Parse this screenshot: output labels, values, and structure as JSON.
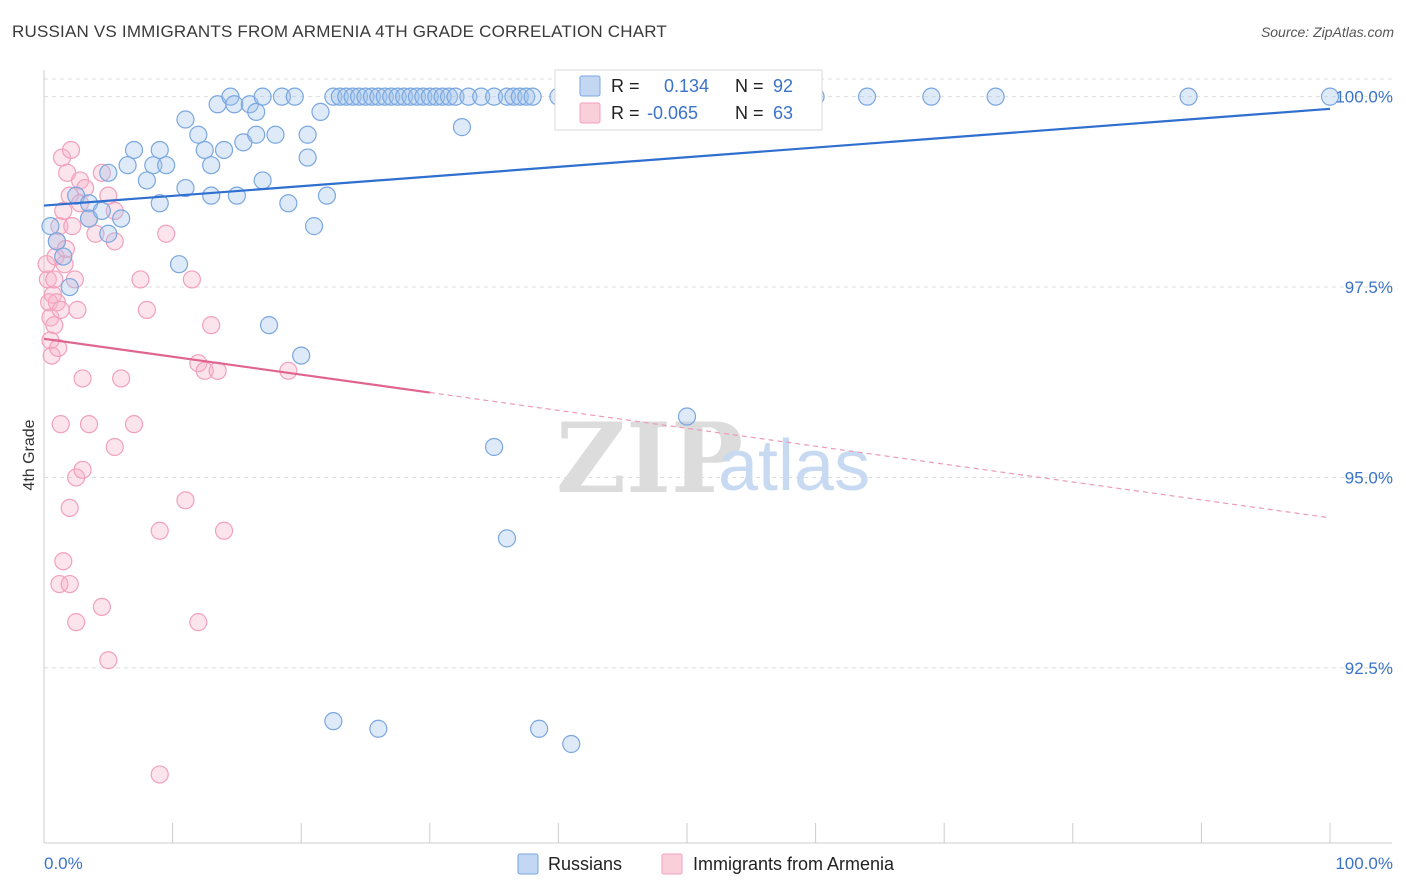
{
  "header": {
    "title": "RUSSIAN VS IMMIGRANTS FROM ARMENIA 4TH GRADE CORRELATION CHART",
    "source": "Source: ZipAtlas.com"
  },
  "watermark": {
    "zip": "ZIP",
    "atlas": "atlas"
  },
  "legend": {
    "r_label": "R =",
    "n_label": "N =",
    "rows": [
      {
        "r": "0.134",
        "n": "92",
        "color": "#7aa7e0"
      },
      {
        "r": "-0.065",
        "n": "63",
        "color": "#f2a0bb"
      }
    ]
  },
  "chart_data": {
    "type": "scatter",
    "title": "RUSSIAN VS IMMIGRANTS FROM ARMENIA 4TH GRADE CORRELATION CHART",
    "xlabel": "",
    "ylabel": "4th Grade",
    "xlim": [
      0,
      100
    ],
    "ylim": [
      90.2,
      100.35
    ],
    "x_tick_labels": [
      "0.0%",
      "100.0%"
    ],
    "y_ticks": [
      92.5,
      95.0,
      97.5,
      100.0
    ],
    "y_tick_labels": [
      "92.5%",
      "95.0%",
      "97.5%",
      "100.0%"
    ],
    "grid": true,
    "legend_position": "top-center",
    "series": [
      {
        "name": "Russians",
        "color": "#7aa7e0",
        "trend": {
          "x": [
            0,
            100
          ],
          "y": [
            98.57,
            99.84
          ],
          "solid_until": 100
        },
        "points": [
          [
            0.5,
            98.3
          ],
          [
            1.0,
            98.1
          ],
          [
            1.5,
            97.9
          ],
          [
            2.0,
            97.5
          ],
          [
            2.5,
            98.7
          ],
          [
            3.5,
            98.6
          ],
          [
            3.5,
            98.4
          ],
          [
            4.5,
            98.5
          ],
          [
            5.0,
            98.2
          ],
          [
            5.0,
            99.0
          ],
          [
            6.0,
            98.4
          ],
          [
            6.5,
            99.1
          ],
          [
            7.0,
            99.3
          ],
          [
            8.0,
            98.9
          ],
          [
            8.5,
            99.1
          ],
          [
            9.0,
            98.6
          ],
          [
            9.0,
            99.3
          ],
          [
            9.5,
            99.1
          ],
          [
            10.5,
            97.8
          ],
          [
            11.0,
            99.7
          ],
          [
            11.0,
            98.8
          ],
          [
            12.0,
            99.5
          ],
          [
            12.5,
            99.3
          ],
          [
            13.0,
            99.1
          ],
          [
            13.0,
            98.7
          ],
          [
            13.5,
            99.9
          ],
          [
            14.0,
            99.3
          ],
          [
            14.5,
            100.0
          ],
          [
            14.8,
            99.9
          ],
          [
            15.0,
            98.7
          ],
          [
            15.5,
            99.4
          ],
          [
            16.0,
            99.9
          ],
          [
            16.5,
            99.5
          ],
          [
            16.5,
            99.8
          ],
          [
            17.0,
            98.9
          ],
          [
            17.0,
            100.0
          ],
          [
            17.5,
            97.0
          ],
          [
            18.0,
            99.5
          ],
          [
            18.5,
            100.0
          ],
          [
            19.0,
            98.6
          ],
          [
            19.5,
            100.0
          ],
          [
            20.0,
            96.6
          ],
          [
            20.5,
            99.5
          ],
          [
            20.5,
            99.2
          ],
          [
            21.0,
            98.3
          ],
          [
            21.5,
            99.8
          ],
          [
            22.0,
            98.7
          ],
          [
            22.5,
            100.0
          ],
          [
            23.0,
            100.0
          ],
          [
            23.5,
            100.0
          ],
          [
            24.0,
            100.0
          ],
          [
            24.5,
            100.0
          ],
          [
            25.0,
            100.0
          ],
          [
            25.5,
            100.0
          ],
          [
            26.0,
            100.0
          ],
          [
            26.5,
            100.0
          ],
          [
            27.0,
            100.0
          ],
          [
            27.5,
            100.0
          ],
          [
            28.0,
            100.0
          ],
          [
            28.5,
            100.0
          ],
          [
            29.0,
            100.0
          ],
          [
            29.5,
            100.0
          ],
          [
            30.0,
            100.0
          ],
          [
            30.5,
            100.0
          ],
          [
            31.0,
            100.0
          ],
          [
            31.5,
            100.0
          ],
          [
            32.0,
            100.0
          ],
          [
            32.5,
            99.6
          ],
          [
            33.0,
            100.0
          ],
          [
            34.0,
            100.0
          ],
          [
            35.0,
            100.0
          ],
          [
            36.0,
            100.0
          ],
          [
            36.5,
            100.0
          ],
          [
            37.0,
            100.0
          ],
          [
            37.5,
            100.0
          ],
          [
            38.0,
            100.0
          ],
          [
            40.0,
            100.0
          ],
          [
            41.0,
            100.0
          ],
          [
            42.0,
            100.0
          ],
          [
            48.5,
            100.0
          ],
          [
            51.0,
            100.0
          ],
          [
            53.0,
            100.0
          ],
          [
            56.5,
            100.0
          ],
          [
            60.0,
            100.0
          ],
          [
            64.0,
            100.0
          ],
          [
            69.0,
            100.0
          ],
          [
            74.0,
            100.0
          ],
          [
            89.0,
            100.0
          ],
          [
            100.0,
            100.0
          ],
          [
            36.0,
            94.2
          ],
          [
            35.0,
            95.4
          ],
          [
            50.0,
            95.8
          ],
          [
            22.5,
            91.8
          ],
          [
            26.0,
            91.7
          ],
          [
            38.5,
            91.7
          ],
          [
            41.0,
            91.5
          ]
        ]
      },
      {
        "name": "Immigrants from Armenia",
        "color": "#f2a0bb",
        "trend": {
          "x": [
            0,
            100
          ],
          "y": [
            96.82,
            94.47
          ],
          "solid_until": 30
        },
        "points": [
          [
            0.2,
            97.8
          ],
          [
            0.3,
            97.6
          ],
          [
            0.4,
            97.3
          ],
          [
            0.5,
            97.1
          ],
          [
            0.5,
            96.8
          ],
          [
            0.6,
            96.6
          ],
          [
            0.7,
            97.4
          ],
          [
            0.8,
            97.6
          ],
          [
            0.9,
            97.9
          ],
          [
            1.0,
            98.1
          ],
          [
            1.0,
            97.3
          ],
          [
            1.1,
            96.7
          ],
          [
            1.2,
            98.3
          ],
          [
            1.3,
            97.2
          ],
          [
            1.4,
            99.2
          ],
          [
            1.5,
            98.5
          ],
          [
            1.6,
            97.8
          ],
          [
            1.7,
            98.0
          ],
          [
            1.8,
            99.0
          ],
          [
            2.0,
            98.7
          ],
          [
            2.1,
            99.3
          ],
          [
            2.2,
            98.3
          ],
          [
            2.4,
            97.6
          ],
          [
            2.6,
            97.2
          ],
          [
            2.8,
            98.6
          ],
          [
            3.0,
            96.3
          ],
          [
            3.5,
            98.4
          ],
          [
            4.0,
            98.2
          ],
          [
            4.5,
            99.0
          ],
          [
            5.0,
            98.7
          ],
          [
            5.5,
            98.1
          ],
          [
            6.0,
            96.3
          ],
          [
            7.0,
            95.7
          ],
          [
            7.5,
            97.6
          ],
          [
            8.0,
            97.2
          ],
          [
            1.3,
            95.7
          ],
          [
            3.5,
            95.7
          ],
          [
            5.5,
            95.4
          ],
          [
            2.5,
            95.0
          ],
          [
            3.0,
            95.1
          ],
          [
            2.0,
            94.6
          ],
          [
            9.0,
            94.3
          ],
          [
            11.0,
            94.7
          ],
          [
            14.0,
            94.3
          ],
          [
            1.5,
            93.9
          ],
          [
            1.2,
            93.6
          ],
          [
            2.0,
            93.6
          ],
          [
            2.5,
            93.1
          ],
          [
            4.5,
            93.3
          ],
          [
            12.0,
            93.1
          ],
          [
            5.0,
            92.6
          ],
          [
            9.0,
            91.1
          ],
          [
            9.5,
            98.2
          ],
          [
            11.5,
            97.6
          ],
          [
            12.0,
            96.5
          ],
          [
            12.5,
            96.4
          ],
          [
            13.0,
            97.0
          ],
          [
            13.5,
            96.4
          ],
          [
            19.0,
            96.4
          ],
          [
            2.8,
            98.9
          ],
          [
            5.5,
            98.5
          ],
          [
            3.2,
            98.8
          ],
          [
            0.8,
            97.0
          ]
        ]
      }
    ]
  }
}
